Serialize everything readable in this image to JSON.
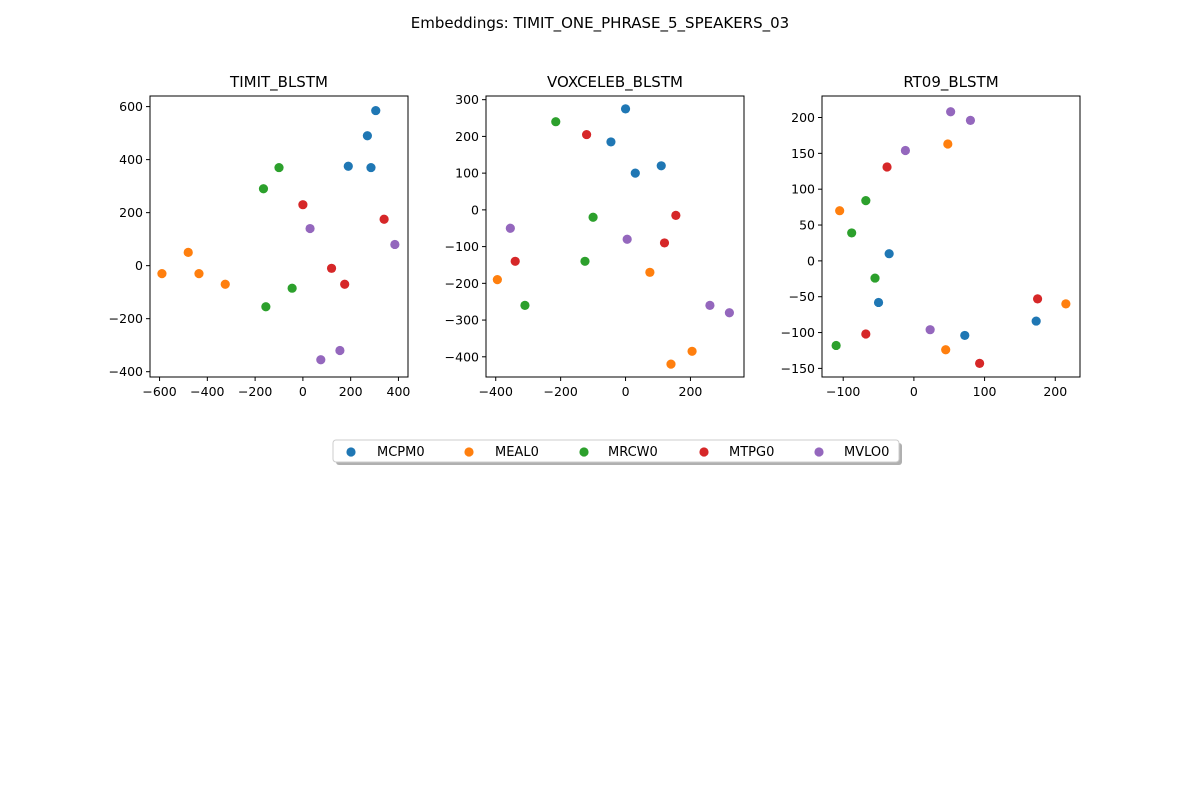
{
  "figure": {
    "suptitle": "Embeddings: TIMIT_ONE_PHRASE_5_SPEAKERS_03"
  },
  "chart_data": [
    {
      "type": "scatter",
      "title": "TIMIT_BLSTM",
      "xlabel": "",
      "ylabel": "",
      "xlim": [
        -640,
        440
      ],
      "ylim": [
        -420,
        640
      ],
      "xticks": [
        -600,
        -400,
        -200,
        0,
        200,
        400
      ],
      "yticks": [
        -400,
        -200,
        0,
        200,
        400,
        600
      ],
      "series": [
        {
          "name": "MCPM0",
          "points": [
            [
              190,
              375
            ],
            [
              270,
              490
            ],
            [
              285,
              370
            ],
            [
              305,
              585
            ]
          ]
        },
        {
          "name": "MEAL0",
          "points": [
            [
              -590,
              -30
            ],
            [
              -480,
              50
            ],
            [
              -435,
              -30
            ],
            [
              -325,
              -70
            ]
          ]
        },
        {
          "name": "MRCW0",
          "points": [
            [
              -165,
              290
            ],
            [
              -100,
              370
            ],
            [
              -155,
              -155
            ],
            [
              -45,
              -85
            ]
          ]
        },
        {
          "name": "MTPG0",
          "points": [
            [
              0,
              230
            ],
            [
              120,
              -10
            ],
            [
              175,
              -70
            ],
            [
              340,
              175
            ]
          ]
        },
        {
          "name": "MVLO0",
          "points": [
            [
              30,
              140
            ],
            [
              385,
              80
            ],
            [
              75,
              -355
            ],
            [
              155,
              -320
            ]
          ]
        }
      ]
    },
    {
      "type": "scatter",
      "title": "VOXCELEB_BLSTM",
      "xlabel": "",
      "ylabel": "",
      "xlim": [
        -430,
        365
      ],
      "ylim": [
        -455,
        310
      ],
      "xticks": [
        -400,
        -200,
        0,
        200
      ],
      "yticks": [
        -400,
        -300,
        -200,
        -100,
        0,
        100,
        200,
        300
      ],
      "series": [
        {
          "name": "MCPM0",
          "points": [
            [
              -45,
              185
            ],
            [
              0,
              275
            ],
            [
              30,
              100
            ],
            [
              110,
              120
            ]
          ]
        },
        {
          "name": "MEAL0",
          "points": [
            [
              -395,
              -190
            ],
            [
              75,
              -170
            ],
            [
              140,
              -420
            ],
            [
              205,
              -385
            ]
          ]
        },
        {
          "name": "MRCW0",
          "points": [
            [
              -215,
              240
            ],
            [
              -100,
              -20
            ],
            [
              -125,
              -140
            ],
            [
              -310,
              -260
            ]
          ]
        },
        {
          "name": "MTPG0",
          "points": [
            [
              -120,
              205
            ],
            [
              -340,
              -140
            ],
            [
              120,
              -90
            ],
            [
              155,
              -15
            ]
          ]
        },
        {
          "name": "MVLO0",
          "points": [
            [
              -355,
              -50
            ],
            [
              5,
              -80
            ],
            [
              260,
              -260
            ],
            [
              320,
              -280
            ]
          ]
        }
      ]
    },
    {
      "type": "scatter",
      "title": "RT09_BLSTM",
      "xlabel": "",
      "ylabel": "",
      "xlim": [
        -130,
        235
      ],
      "ylim": [
        -162,
        230
      ],
      "xticks": [
        -100,
        0,
        100,
        200
      ],
      "yticks": [
        -150,
        -100,
        -50,
        0,
        50,
        100,
        150,
        200
      ],
      "series": [
        {
          "name": "MCPM0",
          "points": [
            [
              -35,
              10
            ],
            [
              -50,
              -58
            ],
            [
              72,
              -104
            ],
            [
              173,
              -84
            ]
          ]
        },
        {
          "name": "MEAL0",
          "points": [
            [
              -105,
              70
            ],
            [
              48,
              163
            ],
            [
              45,
              -124
            ],
            [
              215,
              -60
            ]
          ]
        },
        {
          "name": "MRCW0",
          "points": [
            [
              -68,
              84
            ],
            [
              -88,
              39
            ],
            [
              -55,
              -24
            ],
            [
              -110,
              -118
            ]
          ]
        },
        {
          "name": "MTPG0",
          "points": [
            [
              -38,
              131
            ],
            [
              -68,
              -102
            ],
            [
              93,
              -143
            ],
            [
              175,
              -53
            ]
          ]
        },
        {
          "name": "MVLO0",
          "points": [
            [
              -12,
              154
            ],
            [
              52,
              208
            ],
            [
              80,
              196
            ],
            [
              23,
              -96
            ]
          ]
        }
      ]
    }
  ],
  "legend": {
    "placement": "below-center",
    "entries": [
      {
        "label": "MCPM0",
        "color": "#1f77b4"
      },
      {
        "label": "MEAL0",
        "color": "#ff7f0e"
      },
      {
        "label": "MRCW0",
        "color": "#2ca02c"
      },
      {
        "label": "MTPG0",
        "color": "#d62728"
      },
      {
        "label": "MVLO0",
        "color": "#9467bd"
      }
    ]
  }
}
